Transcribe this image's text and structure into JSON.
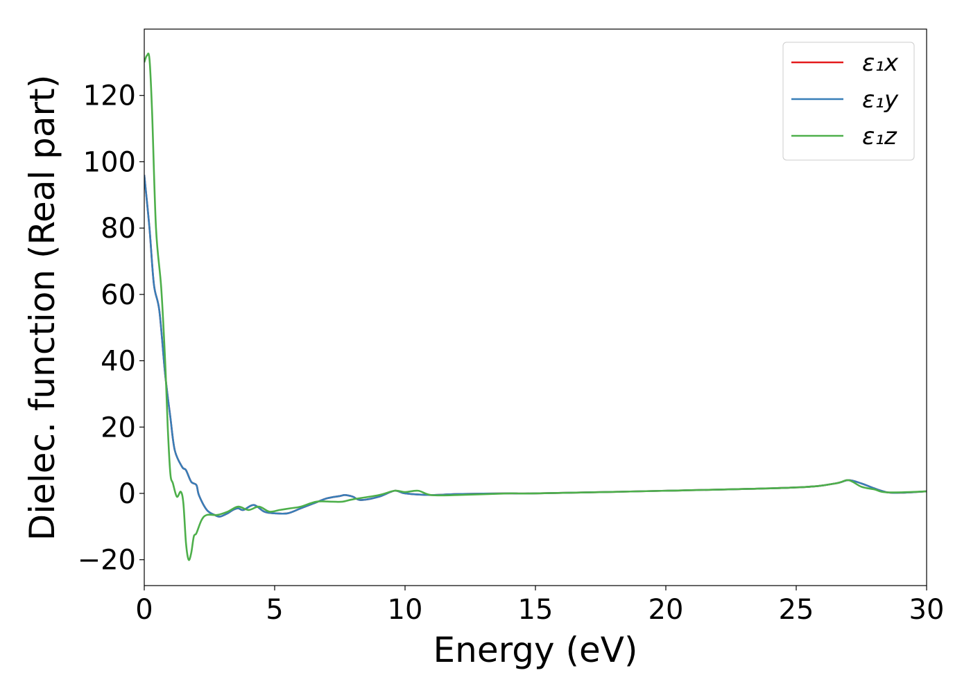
{
  "chart_data": {
    "type": "line",
    "title": "",
    "xlabel": "Energy (eV)",
    "ylabel": "Dielec. function (Real part)",
    "xlim": [
      0,
      30
    ],
    "ylim": [
      -27.8,
      140
    ],
    "xticks": [
      0,
      5,
      10,
      15,
      20,
      25,
      30
    ],
    "xtick_labels": [
      "0",
      "5",
      "10",
      "15",
      "20",
      "25",
      "30"
    ],
    "yticks": [
      -20,
      0,
      20,
      40,
      60,
      80,
      100,
      120
    ],
    "ytick_labels": [
      "−20",
      "0",
      "20",
      "40",
      "60",
      "80",
      "100",
      "120"
    ],
    "grid": false,
    "legend_position": "top-right",
    "series": [
      {
        "name": "ε₁x",
        "color": "#e41a1c",
        "x": [
          0,
          0.2,
          0.37,
          0.58,
          0.8,
          1.0,
          1.17,
          1.45,
          1.6,
          1.8,
          2.0,
          2.1,
          2.4,
          2.7,
          2.9,
          3.2,
          3.4,
          3.6,
          3.8,
          4.2,
          4.6,
          5.0,
          5.5,
          6.0,
          6.5,
          7.0,
          7.5,
          7.7,
          8.0,
          8.3,
          9.0,
          9.6,
          10.0,
          11.0,
          12.0,
          14.0,
          15.0,
          20.0,
          25.0,
          26.5,
          27.0,
          27.5,
          28.0,
          28.5,
          29.0,
          30.0
        ],
        "y": [
          96,
          80,
          63,
          55,
          36,
          23,
          13,
          8,
          7,
          3.5,
          2.5,
          -0.6,
          -5,
          -6.5,
          -7,
          -6,
          -5,
          -4.5,
          -5,
          -3.5,
          -5.5,
          -6,
          -6,
          -4.5,
          -3,
          -1.5,
          -0.8,
          -0.5,
          -1,
          -2,
          -1,
          0.8,
          0,
          -0.5,
          -0.2,
          0,
          0,
          0.8,
          1.8,
          3,
          4,
          3,
          1.5,
          0.3,
          0.2,
          0.6
        ]
      },
      {
        "name": "ε₁y",
        "color": "#377eb8",
        "x": [
          0,
          0.2,
          0.37,
          0.58,
          0.8,
          1.0,
          1.17,
          1.45,
          1.6,
          1.8,
          2.0,
          2.1,
          2.4,
          2.7,
          2.9,
          3.2,
          3.4,
          3.6,
          3.8,
          4.2,
          4.6,
          5.0,
          5.5,
          6.0,
          6.5,
          7.0,
          7.5,
          7.7,
          8.0,
          8.3,
          9.0,
          9.6,
          10.0,
          11.0,
          12.0,
          14.0,
          15.0,
          20.0,
          25.0,
          26.5,
          27.0,
          27.5,
          28.0,
          28.5,
          29.0,
          30.0
        ],
        "y": [
          96,
          80,
          63,
          55,
          36,
          23,
          13,
          8,
          7,
          3.5,
          2.5,
          -0.6,
          -5,
          -6.5,
          -7,
          -6,
          -5,
          -4.5,
          -5,
          -3.5,
          -5.5,
          -6,
          -6,
          -4.5,
          -3,
          -1.5,
          -0.8,
          -0.5,
          -1,
          -2,
          -1,
          0.8,
          0,
          -0.5,
          -0.2,
          0,
          0,
          0.8,
          1.8,
          3,
          4,
          3,
          1.5,
          0.3,
          0.2,
          0.6
        ]
      },
      {
        "name": "ε₁z",
        "color": "#4daf4a",
        "x": [
          0,
          0.1,
          0.2,
          0.3,
          0.45,
          0.65,
          0.8,
          0.9,
          1.0,
          1.1,
          1.25,
          1.4,
          1.5,
          1.6,
          1.7,
          1.8,
          1.9,
          2.0,
          2.2,
          2.4,
          2.8,
          3.2,
          3.6,
          4.0,
          4.4,
          4.8,
          5.2,
          5.6,
          6.0,
          6.6,
          7.2,
          7.6,
          8.0,
          9.0,
          9.6,
          10.0,
          10.5,
          11.0,
          12.0,
          14.0,
          15.0,
          20.0,
          25.0,
          26.5,
          27.0,
          27.5,
          28.0,
          28.5,
          30.0
        ],
        "y": [
          130,
          132,
          131,
          115,
          80,
          62,
          40,
          20,
          6,
          3,
          -1,
          0.5,
          -3,
          -15,
          -20,
          -18,
          -13,
          -12,
          -8,
          -6.5,
          -6.5,
          -5.5,
          -4,
          -5,
          -4,
          -5.5,
          -5,
          -4.5,
          -4,
          -2.5,
          -2.5,
          -2.5,
          -1.8,
          -0.5,
          0.8,
          0.4,
          0.8,
          -0.5,
          -0.5,
          0,
          0,
          0.8,
          1.8,
          3,
          4,
          2,
          1.2,
          0.3,
          0.6
        ]
      }
    ]
  }
}
